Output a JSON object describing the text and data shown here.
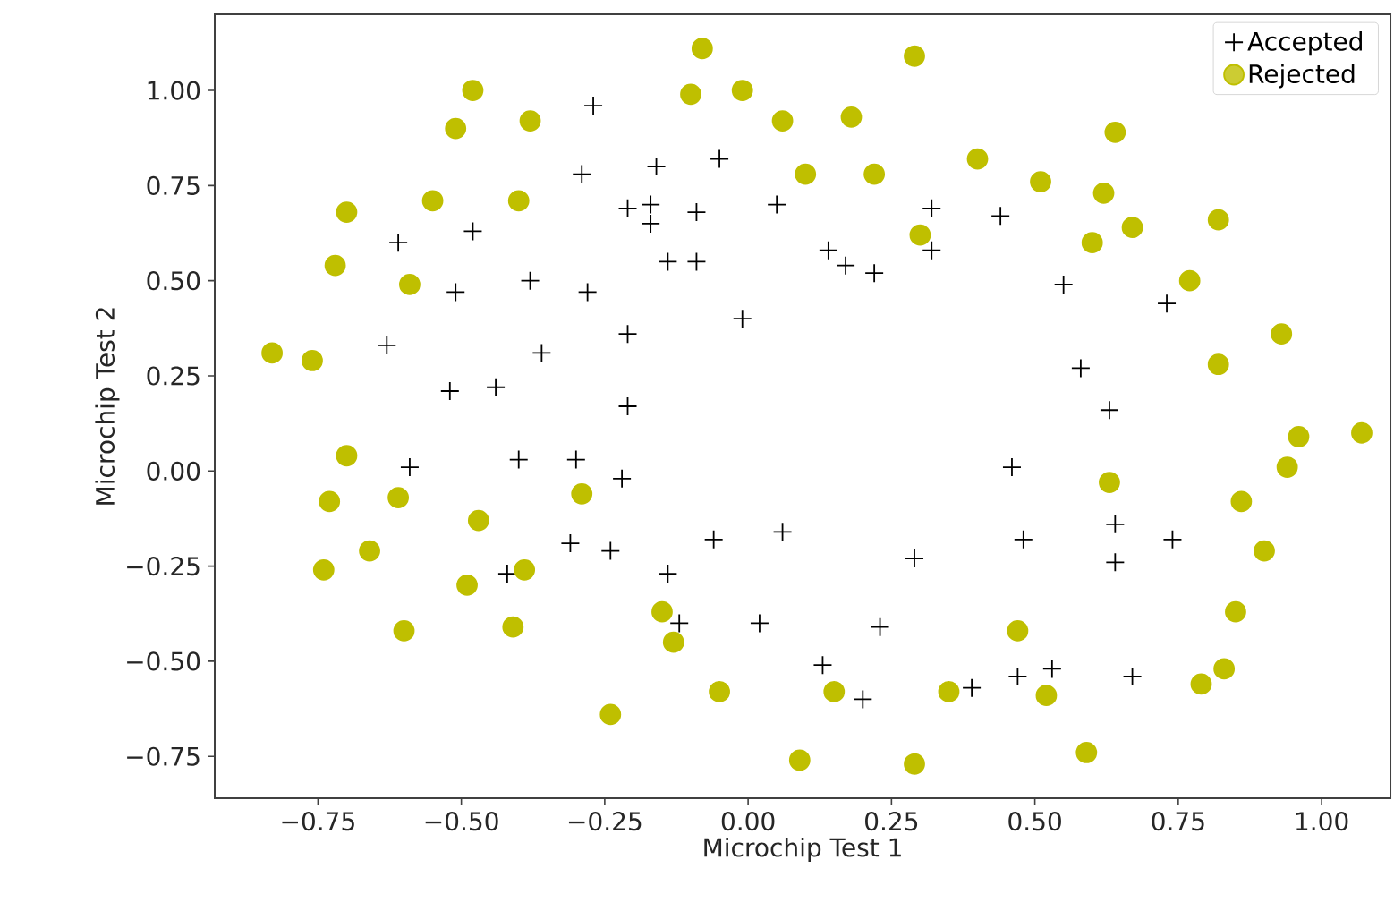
{
  "chart_data": {
    "type": "scatter",
    "xlabel": "Microchip Test 1",
    "ylabel": "Microchip Test 2",
    "xlim": [
      -0.93,
      1.12
    ],
    "ylim": [
      -0.86,
      1.2
    ],
    "xticks": [
      {
        "value": -0.75,
        "label": "−0.75"
      },
      {
        "value": -0.5,
        "label": "−0.50"
      },
      {
        "value": -0.25,
        "label": "−0.25"
      },
      {
        "value": 0,
        "label": "0.00"
      },
      {
        "value": 0.25,
        "label": "0.25"
      },
      {
        "value": 0.5,
        "label": "0.50"
      },
      {
        "value": 0.75,
        "label": "0.75"
      },
      {
        "value": 1,
        "label": "1.00"
      }
    ],
    "yticks": [
      {
        "value": -0.75,
        "label": "−0.75"
      },
      {
        "value": -0.5,
        "label": "−0.50"
      },
      {
        "value": -0.25,
        "label": "−0.25"
      },
      {
        "value": 0,
        "label": "0.00"
      },
      {
        "value": 0.25,
        "label": "0.25"
      },
      {
        "value": 0.5,
        "label": "0.50"
      },
      {
        "value": 0.75,
        "label": "0.75"
      },
      {
        "value": 1,
        "label": "1.00"
      }
    ],
    "grid": false,
    "legend": "top right",
    "series": [
      {
        "name": "Accepted",
        "color": "#000000",
        "marker": "cross",
        "x": [
          0.05,
          -0.09,
          -0.21,
          -0.38,
          -0.51,
          -0.52,
          -0.4,
          -0.31,
          0.02,
          0.13,
          0.39,
          0.53,
          0.64,
          0.74,
          0.55,
          0.32,
          0.17,
          -0.05,
          -0.17,
          -0.48,
          -0.61,
          -0.63,
          -0.59,
          -0.42,
          -0.12,
          0.2,
          0.47,
          0.67,
          -0.14,
          -0.29,
          -0.27,
          -0.16,
          -0.17,
          -0.28,
          -0.36,
          -0.3,
          -0.24,
          -0.06,
          0.06,
          0.23,
          0.29,
          0.48,
          0.64,
          0.46,
          0.63,
          0.58,
          0.73,
          0.22,
          0.44,
          0.32,
          0.14,
          -0.01,
          -0.09,
          -0.21,
          -0.21,
          -0.44,
          -0.22,
          -0.14
        ],
        "values": [
          0.7,
          0.68,
          0.69,
          0.5,
          0.47,
          0.21,
          0.03,
          -0.19,
          -0.4,
          -0.51,
          -0.57,
          -0.52,
          -0.24,
          -0.18,
          0.49,
          0.58,
          0.54,
          0.82,
          0.7,
          0.63,
          0.6,
          0.33,
          0.01,
          -0.27,
          -0.4,
          -0.6,
          -0.54,
          -0.54,
          0.55,
          0.78,
          0.96,
          0.8,
          0.65,
          0.47,
          0.31,
          0.03,
          -0.21,
          -0.18,
          -0.16,
          -0.41,
          -0.23,
          -0.18,
          -0.14,
          0.01,
          0.16,
          0.27,
          0.44,
          0.52,
          0.67,
          0.69,
          0.58,
          0.4,
          0.55,
          0.36,
          0.17,
          0.22,
          -0.02,
          -0.27
        ]
      },
      {
        "name": "Rejected",
        "color": "#bfbf00",
        "marker": "circle",
        "x": [
          0.18,
          0.22,
          0.3,
          0.51,
          0.62,
          0.6,
          0.77,
          0.93,
          0.82,
          0.96,
          0.94,
          0.86,
          0.9,
          0.85,
          0.83,
          0.79,
          0.59,
          0.52,
          0.47,
          0.35,
          0.29,
          0.09,
          0.15,
          -0.13,
          -0.41,
          -0.39,
          -0.74,
          -0.7,
          -0.76,
          -0.7,
          -0.4,
          -0.38,
          -0.51,
          -0.55,
          0.1,
          0.06,
          -0.1,
          -0.08,
          0.29,
          0.4,
          0.64,
          0.82,
          0.67,
          1.07,
          -0.05,
          -0.24,
          -0.15,
          -0.49,
          -0.47,
          -0.29,
          -0.61,
          -0.66,
          -0.6,
          -0.73,
          -0.83,
          -0.72,
          -0.59,
          -0.48,
          -0.01,
          0.63
        ],
        "values": [
          0.93,
          0.78,
          0.62,
          0.76,
          0.73,
          0.6,
          0.5,
          0.36,
          0.28,
          0.09,
          0.01,
          -0.08,
          -0.21,
          -0.37,
          -0.52,
          -0.56,
          -0.74,
          -0.59,
          -0.42,
          -0.58,
          -0.77,
          -0.76,
          -0.58,
          -0.45,
          -0.41,
          -0.26,
          -0.26,
          0.04,
          0.29,
          0.68,
          0.71,
          0.92,
          0.9,
          0.71,
          0.78,
          0.92,
          0.99,
          1.11,
          1.09,
          0.82,
          0.89,
          0.66,
          0.64,
          0.1,
          -0.58,
          -0.64,
          -0.37,
          -0.3,
          -0.13,
          -0.06,
          -0.07,
          -0.21,
          -0.42,
          -0.08,
          0.31,
          0.54,
          0.49,
          1.0,
          1.0,
          -0.03
        ]
      }
    ]
  }
}
